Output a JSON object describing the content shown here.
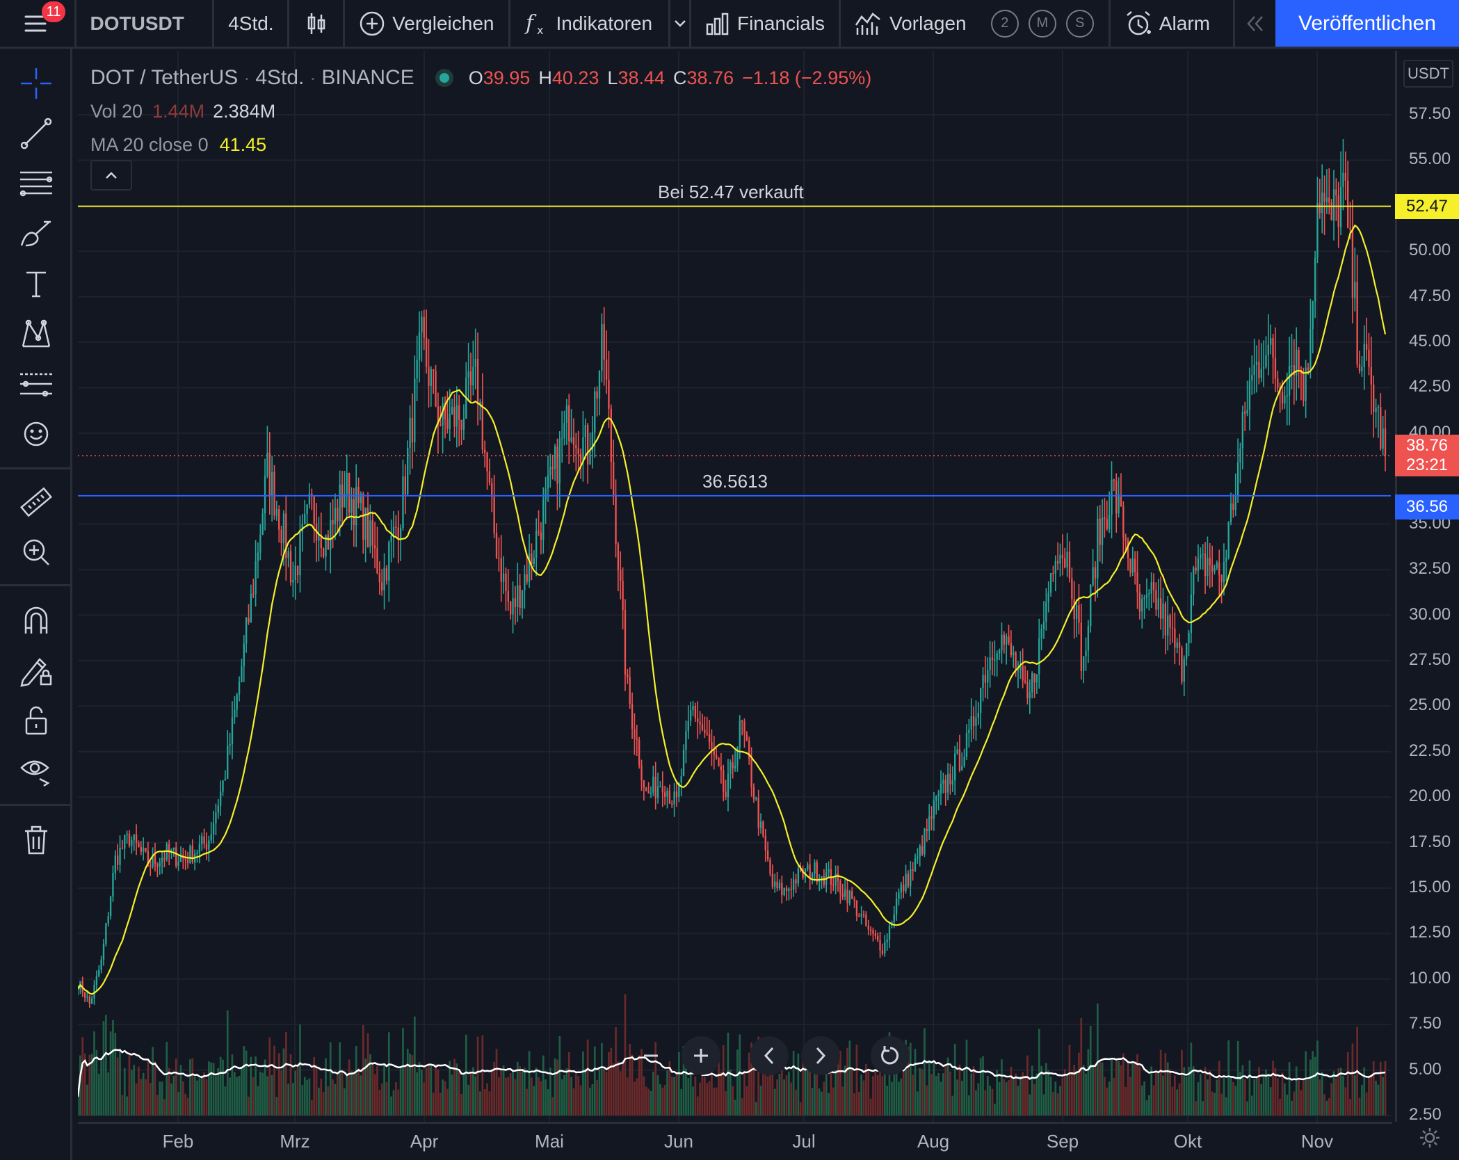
{
  "toolbar": {
    "notification_count": "11",
    "symbol": "DOTUSDT",
    "interval": "4Std.",
    "compare_label": "Vergleichen",
    "indicators_label": "Indikatoren",
    "financials_label": "Financials",
    "templates_label": "Vorlagen",
    "layout_buttons": [
      "2",
      "M",
      "S"
    ],
    "alarm_label": "Alarm",
    "publish_label": "Veröffentlichen"
  },
  "left_tools": [
    "crosshair-icon",
    "trend-line-icon",
    "fib-retracement-icon",
    "brush-icon",
    "text-icon",
    "pattern-icon",
    "prediction-icon",
    "emoji-icon",
    "ruler-icon",
    "zoom-in-icon",
    "magnet-icon",
    "lock-drawing-icon",
    "lock-icon",
    "eye-icon",
    "trash-icon"
  ],
  "legend": {
    "symbol_title": "DOT / TetherUS",
    "interval": "4Std.",
    "exchange": "BINANCE",
    "open_label": "O",
    "open": "39.95",
    "high_label": "H",
    "high": "40.23",
    "low_label": "L",
    "low": "38.44",
    "close_label": "C",
    "close": "38.76",
    "change": "−1.18 (−2.95%)",
    "vol_label": "Vol 20",
    "vol_value": "1.44M",
    "vol_ma": "2.384M",
    "ma_label": "MA 20 close 0",
    "ma_value": "41.45"
  },
  "drawings": {
    "sell_line_label": "Bei 52.47 verkauft",
    "sell_line_price": 52.47,
    "sell_line_color": "#f5f02a",
    "blue_line_label": "36.5613",
    "blue_line_price": 36.56,
    "blue_line_color": "#2962ff"
  },
  "price_axis": {
    "currency": "USDT",
    "ticks": [
      "57.50",
      "55.00",
      "50.00",
      "47.50",
      "45.00",
      "42.50",
      "40.00",
      "35.00",
      "32.50",
      "30.00",
      "27.50",
      "25.00",
      "22.50",
      "20.00",
      "17.50",
      "15.00",
      "12.50",
      "10.00",
      "7.50",
      "5.00",
      "2.50"
    ],
    "last_price": "38.76",
    "countdown": "23:21",
    "sell_tag": "52.47",
    "blue_tag": "36.56"
  },
  "time_axis": {
    "labels": [
      "Feb",
      "Mrz",
      "Apr",
      "Mai",
      "Jun",
      "Jul",
      "Aug",
      "Sep",
      "Okt",
      "Nov"
    ]
  },
  "colors": {
    "up": "#26a69a",
    "down": "#ef5350",
    "ma": "#f5f02a",
    "background": "#131722",
    "accent": "#2962ff"
  },
  "chart_data": {
    "type": "candlestick",
    "title": "DOT / TetherUS",
    "ylim": [
      2.5,
      58.5
    ],
    "months": [
      "Feb",
      "Mrz",
      "Apr",
      "Mai",
      "Jun",
      "Jul",
      "Aug",
      "Sep",
      "Okt",
      "Nov"
    ],
    "price_anchors": [
      [
        0,
        9.8
      ],
      [
        0.3,
        9.3
      ],
      [
        0.6,
        8.6
      ],
      [
        1.2,
        11
      ],
      [
        1.9,
        16.6
      ],
      [
        2.6,
        17.8
      ],
      [
        3.6,
        16.3
      ],
      [
        4.5,
        16.9
      ],
      [
        5.4,
        16.6
      ],
      [
        6.6,
        17.6
      ],
      [
        7.4,
        21
      ],
      [
        8,
        25
      ],
      [
        8.8,
        31
      ],
      [
        9.6,
        38
      ],
      [
        10.2,
        35.5
      ],
      [
        10.9,
        32
      ],
      [
        11.8,
        36
      ],
      [
        12.6,
        34
      ],
      [
        13.5,
        37
      ],
      [
        14.4,
        35.5
      ],
      [
        15.4,
        32
      ],
      [
        16.4,
        36
      ],
      [
        17.4,
        45
      ],
      [
        18.4,
        40.5
      ],
      [
        19.4,
        41
      ],
      [
        20.2,
        43
      ],
      [
        21,
        35
      ],
      [
        21.9,
        30
      ],
      [
        22.9,
        33
      ],
      [
        23.9,
        37
      ],
      [
        24.9,
        41
      ],
      [
        25.8,
        39
      ],
      [
        26.6,
        45
      ],
      [
        27.3,
        34
      ],
      [
        27.8,
        26
      ],
      [
        28.8,
        20
      ],
      [
        29.6,
        21
      ],
      [
        30.3,
        19.5
      ],
      [
        31.1,
        25
      ],
      [
        31.9,
        23
      ],
      [
        32.8,
        20
      ],
      [
        33.6,
        24
      ],
      [
        34.6,
        18
      ],
      [
        35.2,
        15
      ],
      [
        35.8,
        14.8
      ],
      [
        36.4,
        15.6
      ],
      [
        37.2,
        16
      ],
      [
        38.2,
        15.5
      ],
      [
        39.1,
        14.5
      ],
      [
        40.1,
        12.5
      ],
      [
        40.8,
        11.7
      ],
      [
        41.5,
        14.5
      ],
      [
        42.5,
        16.5
      ],
      [
        43.4,
        19.5
      ],
      [
        44.3,
        21.5
      ],
      [
        45.1,
        23
      ],
      [
        45.8,
        26.5
      ],
      [
        46.6,
        29
      ],
      [
        47.4,
        27.5
      ],
      [
        48.1,
        25
      ],
      [
        48.8,
        29
      ],
      [
        49.5,
        34
      ],
      [
        50.2,
        33
      ],
      [
        50.9,
        27
      ],
      [
        51.6,
        34
      ],
      [
        52.4,
        37
      ],
      [
        53.1,
        34
      ],
      [
        53.8,
        30
      ],
      [
        54.5,
        31
      ],
      [
        55.3,
        29
      ],
      [
        55.9,
        27.2
      ],
      [
        56.5,
        32
      ],
      [
        57.2,
        33
      ],
      [
        57.9,
        32
      ],
      [
        58.6,
        37
      ],
      [
        59.3,
        42.5
      ],
      [
        60.1,
        45
      ],
      [
        60.9,
        42.5
      ],
      [
        61.6,
        44.5
      ],
      [
        62.2,
        42.5
      ],
      [
        62.8,
        53.5
      ],
      [
        63.4,
        51.5
      ],
      [
        64.1,
        53.5
      ],
      [
        64.8,
        45
      ],
      [
        65.5,
        42.5
      ],
      [
        66.2,
        38.76
      ]
    ],
    "ma_period": 20,
    "ma_last": 41.45,
    "volume_ma_last": 2.384,
    "volume_last": 1.44
  }
}
